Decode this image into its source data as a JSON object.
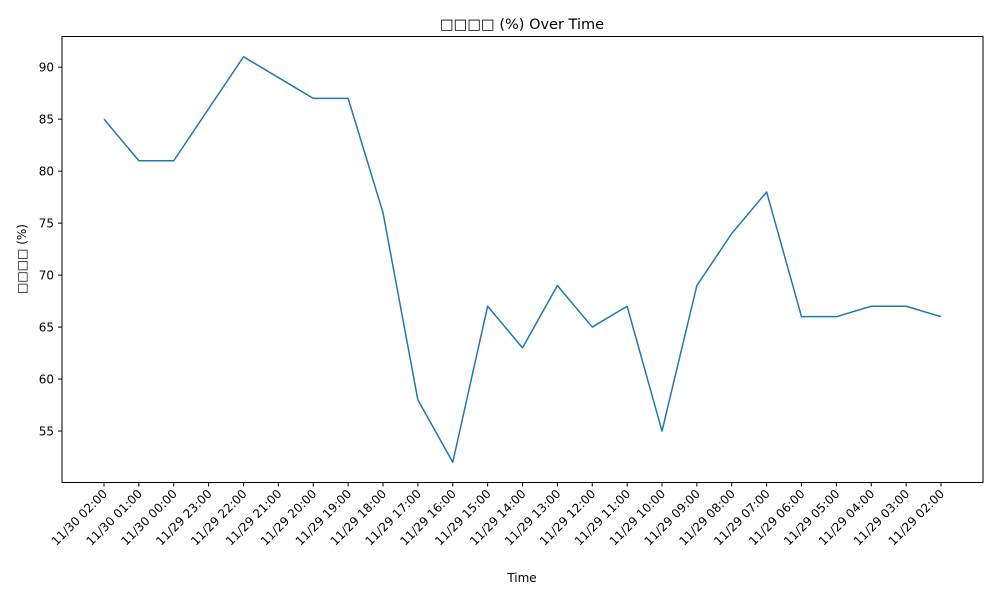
{
  "chart_data": {
    "type": "line",
    "title": "□□□□ (%) Over Time",
    "xlabel": "Time",
    "ylabel": "□□□□ (%)",
    "categories": [
      "11/30  02:00",
      "11/30  01:00",
      "11/30  00:00",
      "11/29  23:00",
      "11/29  22:00",
      "11/29  21:00",
      "11/29  20:00",
      "11/29  19:00",
      "11/29  18:00",
      "11/29  17:00",
      "11/29  16:00",
      "11/29  15:00",
      "11/29  14:00",
      "11/29  13:00",
      "11/29  12:00",
      "11/29  11:00",
      "11/29  10:00",
      "11/29  09:00",
      "11/29  08:00",
      "11/29  07:00",
      "11/29  06:00",
      "11/29  05:00",
      "11/29  04:00",
      "11/29  03:00",
      "11/29  02:00"
    ],
    "values": [
      85,
      81,
      81,
      86,
      91,
      89,
      87,
      87,
      76,
      58,
      52,
      67,
      63,
      69,
      65,
      67,
      55,
      69,
      74,
      78,
      66,
      66,
      67,
      67,
      66
    ],
    "yticks": [
      55,
      60,
      65,
      70,
      75,
      80,
      85,
      90
    ],
    "ylim": [
      50.05,
      92.95
    ],
    "grid": false,
    "line_color": "#1f77b4"
  }
}
